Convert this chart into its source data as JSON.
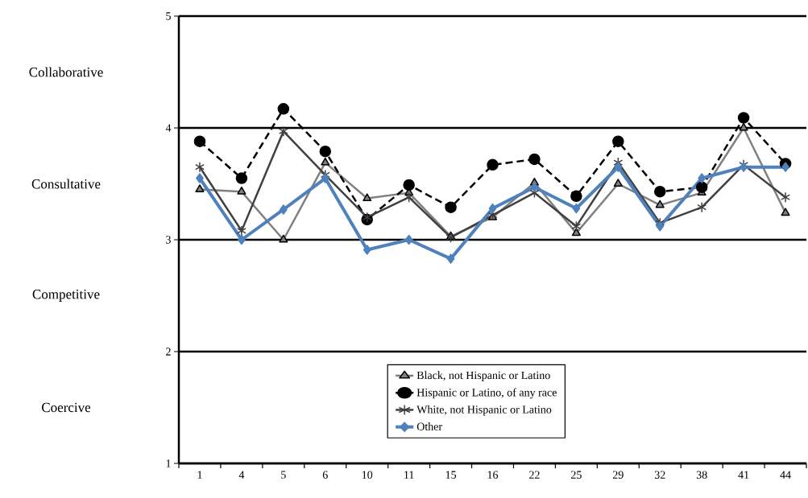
{
  "chart_data": {
    "type": "line",
    "categories": [
      "1",
      "4",
      "5",
      "6",
      "10",
      "11",
      "15",
      "16",
      "22",
      "25",
      "29",
      "32",
      "38",
      "41",
      "44"
    ],
    "series": [
      {
        "name": "Black, not Hispanic or Latino",
        "color": "#808080",
        "marker": "triangle",
        "line_style": "solid",
        "values": [
          3.45,
          3.43,
          3.0,
          3.69,
          3.37,
          3.42,
          3.03,
          3.2,
          3.51,
          3.06,
          3.5,
          3.31,
          3.42,
          4.0,
          3.24
        ]
      },
      {
        "name": "Hispanic or Latino, of any race",
        "color": "#000000",
        "marker": "circle",
        "line_style": "dashed",
        "values": [
          3.88,
          3.55,
          4.17,
          3.79,
          3.18,
          3.49,
          3.29,
          3.67,
          3.72,
          3.39,
          3.88,
          3.43,
          3.47,
          4.09,
          3.68
        ]
      },
      {
        "name": "White, not Hispanic or Latino",
        "color": "#404040",
        "marker": "cross",
        "line_style": "solid",
        "values": [
          3.65,
          3.08,
          3.97,
          3.58,
          3.2,
          3.38,
          3.02,
          3.22,
          3.42,
          3.12,
          3.69,
          3.15,
          3.29,
          3.67,
          3.38
        ]
      },
      {
        "name": "Other",
        "color": "#4f81bd",
        "marker": "diamond",
        "line_style": "solid",
        "values": [
          3.55,
          3.0,
          3.27,
          3.55,
          2.91,
          3.0,
          2.83,
          3.28,
          3.47,
          3.28,
          3.65,
          3.12,
          3.55,
          3.65,
          3.65
        ]
      }
    ],
    "ylim": [
      1,
      5
    ],
    "yticks": [
      1,
      2,
      3,
      4,
      5
    ],
    "grid": "y",
    "legend": "bottom",
    "annotations": [
      "Collaborative",
      "Consultative",
      "Competitive",
      "Coercive"
    ]
  }
}
